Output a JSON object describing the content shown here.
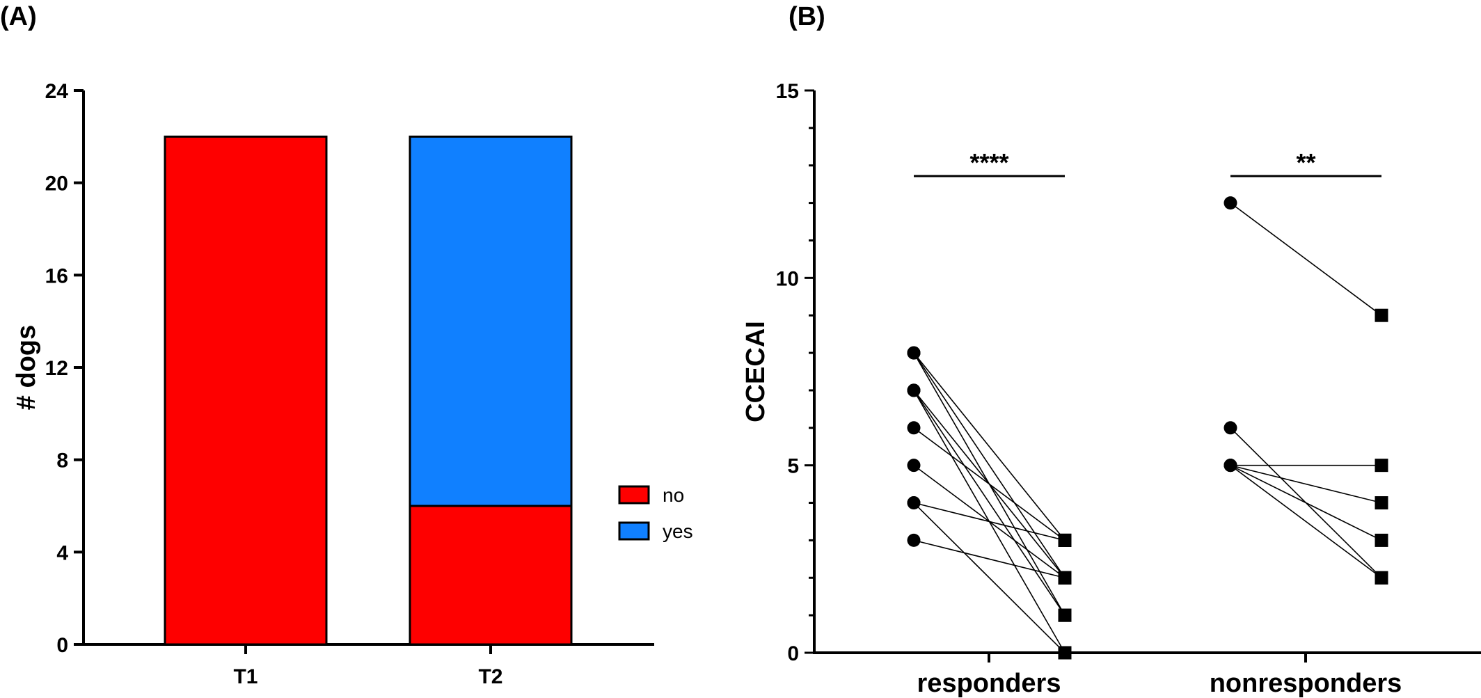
{
  "chart_data": [
    {
      "panel_label": "(A)",
      "type": "bar",
      "stacked": true,
      "categories": [
        "T1",
        "T2"
      ],
      "series": [
        {
          "name": "no",
          "color": "#fe0000",
          "values": [
            22,
            6
          ]
        },
        {
          "name": "yes",
          "color": "#1080ff",
          "values": [
            0,
            16
          ]
        }
      ],
      "ylabel": "# dogs",
      "ylim": [
        0,
        24
      ],
      "yticks": [
        0,
        4,
        8,
        12,
        16,
        20,
        24
      ],
      "grid": false,
      "legend_position": "right"
    },
    {
      "panel_label": "(B)",
      "type": "scatter",
      "ylabel": "CCECAI",
      "ylim": [
        0,
        15
      ],
      "yticks": [
        0,
        5,
        10,
        15
      ],
      "grid": false,
      "groups": [
        {
          "name": "responders",
          "significance": "****",
          "pairs": [
            [
              8,
              3
            ],
            [
              8,
              2
            ],
            [
              8,
              1
            ],
            [
              7,
              2
            ],
            [
              7,
              1
            ],
            [
              7,
              0
            ],
            [
              6,
              3
            ],
            [
              5,
              2
            ],
            [
              4,
              3
            ],
            [
              4,
              0
            ],
            [
              3,
              2
            ]
          ]
        },
        {
          "name": "nonresponders",
          "significance": "**",
          "pairs": [
            [
              12,
              9
            ],
            [
              6,
              2
            ],
            [
              5,
              5
            ],
            [
              5,
              4
            ],
            [
              5,
              3
            ],
            [
              5,
              2
            ]
          ]
        }
      ]
    }
  ]
}
